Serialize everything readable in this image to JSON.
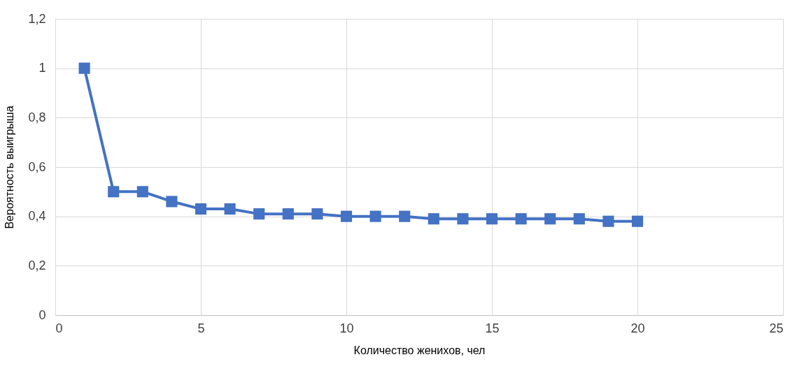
{
  "chart_data": {
    "type": "line",
    "xlabel": "Количество женихов, чел",
    "ylabel": "Вероятность выигрыша",
    "x": [
      1,
      2,
      3,
      4,
      5,
      6,
      7,
      8,
      9,
      10,
      11,
      12,
      13,
      14,
      15,
      16,
      17,
      18,
      19,
      20
    ],
    "series": [
      {
        "color": "#4472c4",
        "values": [
          1,
          0.5,
          0.5,
          0.46,
          0.43,
          0.43,
          0.41,
          0.41,
          0.41,
          0.4,
          0.4,
          0.4,
          0.39,
          0.39,
          0.39,
          0.39,
          0.39,
          0.39,
          0.38,
          0.38
        ]
      }
    ],
    "xlim": [
      0,
      25
    ],
    "xticks": [
      0,
      5,
      10,
      15,
      20,
      25
    ],
    "ylim": [
      0,
      1.2
    ],
    "yticks": [
      0,
      {
        "value": 0.2,
        "label": "0,2"
      },
      {
        "value": 0.4,
        "label": "0,4"
      },
      {
        "value": 0.6,
        "label": "0,6"
      },
      {
        "value": 0.8,
        "label": "0,8"
      },
      1,
      {
        "value": 1.2,
        "label": "1,2"
      }
    ],
    "grid": true,
    "marker": "square",
    "line_style": "solid"
  }
}
